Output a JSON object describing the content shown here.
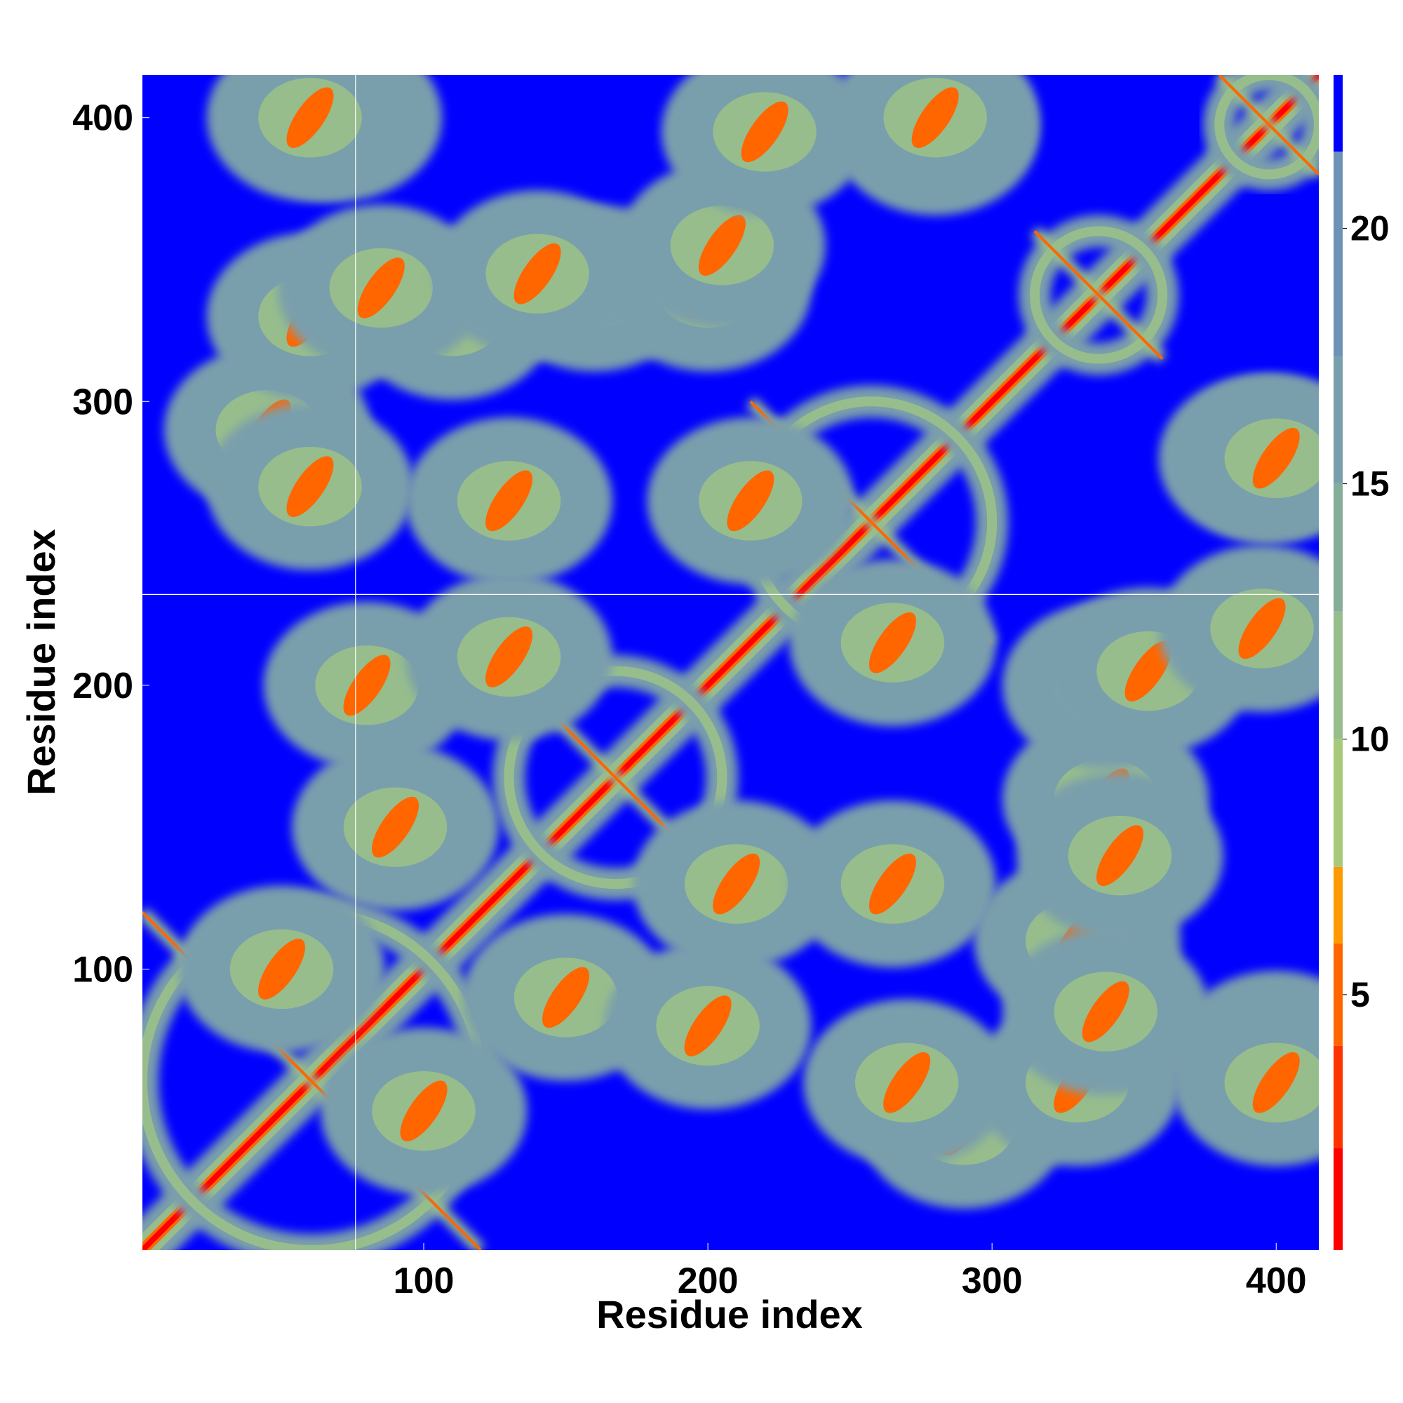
{
  "chart_data": {
    "type": "heatmap",
    "description_of_values": "pairwise residue distance map",
    "xlabel": "Residue index",
    "ylabel": "Residue index",
    "xlim": [
      1,
      415
    ],
    "ylim": [
      1,
      415
    ],
    "x_ticks": [
      100,
      200,
      300,
      400
    ],
    "y_ticks": [
      100,
      200,
      300,
      400
    ],
    "colorbar": {
      "ticks": [
        5,
        10,
        15,
        20
      ],
      "range": [
        0,
        23
      ],
      "stops": [
        {
          "min": 0,
          "max": 2,
          "color": "#ff0000"
        },
        {
          "min": 2,
          "max": 4,
          "color": "#ff3300"
        },
        {
          "min": 4,
          "max": 6,
          "color": "#ff6600"
        },
        {
          "min": 6,
          "max": 7.5,
          "color": "#ff9900"
        },
        {
          "min": 7.5,
          "max": 10,
          "color": "#a6c97a"
        },
        {
          "min": 10,
          "max": 12.5,
          "color": "#97bd8c"
        },
        {
          "min": 12.5,
          "max": 15,
          "color": "#86ad99"
        },
        {
          "min": 15,
          "max": 17.5,
          "color": "#7a9fac"
        },
        {
          "min": 17.5,
          "max": 21.5,
          "color": "#6e92b6"
        },
        {
          "min": 21.5,
          "max": 23,
          "color": "#0000ff"
        }
      ]
    },
    "background_value": 23,
    "background_color": "#0000ff",
    "marked_residue": 76,
    "marked_residue_y": 232,
    "contact_features": [
      {
        "type": "diagonal",
        "from": 1,
        "to": 415
      },
      {
        "type": "block",
        "x": [
          1,
          120
        ],
        "y": [
          1,
          120
        ]
      },
      {
        "type": "block",
        "x": [
          130,
          205
        ],
        "y": [
          130,
          205
        ]
      },
      {
        "type": "block",
        "x": [
          215,
          300
        ],
        "y": [
          215,
          300
        ]
      },
      {
        "type": "block",
        "x": [
          315,
          360
        ],
        "y": [
          315,
          360
        ]
      },
      {
        "type": "block",
        "x": [
          380,
          415
        ],
        "y": [
          380,
          415
        ]
      },
      {
        "type": "blob",
        "x": 45,
        "y": 290
      },
      {
        "type": "blob",
        "x": 60,
        "y": 330
      },
      {
        "type": "blob",
        "x": 70,
        "y": 400
      },
      {
        "type": "blob",
        "x": 100,
        "y": 50
      },
      {
        "type": "blob",
        "x": 110,
        "y": 330
      },
      {
        "type": "blob",
        "x": 150,
        "y": 90
      },
      {
        "type": "blob",
        "x": 160,
        "y": 340
      },
      {
        "type": "blob",
        "x": 200,
        "y": 80
      },
      {
        "type": "blob",
        "x": 200,
        "y": 340
      },
      {
        "type": "blob",
        "x": 210,
        "y": 130
      },
      {
        "type": "blob",
        "x": 270,
        "y": 60
      },
      {
        "type": "blob",
        "x": 280,
        "y": 395
      },
      {
        "type": "blob",
        "x": 340,
        "y": 85
      },
      {
        "type": "blob",
        "x": 345,
        "y": 140
      },
      {
        "type": "blob",
        "x": 355,
        "y": 205
      },
      {
        "type": "blob",
        "x": 400,
        "y": 60
      },
      {
        "type": "blob",
        "x": 400,
        "y": 280
      },
      {
        "type": "blob",
        "x": 395,
        "y": 220
      },
      {
        "type": "blob",
        "x": 265,
        "y": 215
      },
      {
        "type": "blob",
        "x": 130,
        "y": 265
      }
    ]
  }
}
